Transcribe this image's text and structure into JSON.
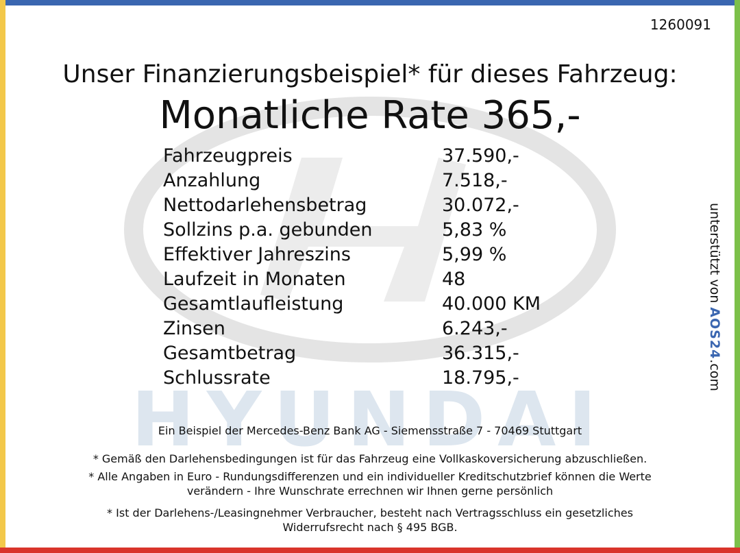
{
  "reference": "1260091",
  "header": {
    "title": "Unser Finanzierungsbeispiel* für dieses Fahrzeug:",
    "rate": "Monatliche Rate 365,-"
  },
  "table": {
    "rows": [
      [
        "Fahrzeugpreis",
        "37.590,-"
      ],
      [
        "Anzahlung",
        "7.518,-"
      ],
      [
        "Nettodarlehensbetrag",
        "30.072,-"
      ],
      [
        "Sollzins p.a. gebunden",
        "5,83 %"
      ],
      [
        "Effektiver Jahreszins",
        "5,99 %"
      ],
      [
        "Laufzeit in Monaten",
        "48"
      ],
      [
        "Gesamtlaufleistung",
        "40.000 KM"
      ],
      [
        "Zinsen",
        "6.243,-"
      ],
      [
        "Gesamtbetrag",
        "36.315,-"
      ],
      [
        "Schlussrate",
        "18.795,-"
      ]
    ]
  },
  "footer": {
    "bank": "Ein Beispiel der Mercedes-Benz Bank AG - Siemensstraße 7 - 70469 Stuttgart",
    "notes": [
      [
        "* Gemäß den Darlehensbedingungen ist für das Fahrzeug eine Vollkaskoversicherung abzuschließen."
      ],
      [
        "* Alle Angaben in Euro - Rundungsdifferenzen und ein individueller Kreditschutzbrief können die Werte",
        "verändern - Ihre Wunschrate errechnen wir Ihnen gerne persönlich"
      ],
      [
        "* Ist der Darlehens-/Leasingnehmer Verbraucher, besteht nach Vertragsschluss ein gesetzliches",
        "Widerrufsrecht nach § 495 BGB."
      ]
    ]
  },
  "side": {
    "label": "unterstützt von",
    "brand": "AOS24",
    "domain": ".com"
  }
}
